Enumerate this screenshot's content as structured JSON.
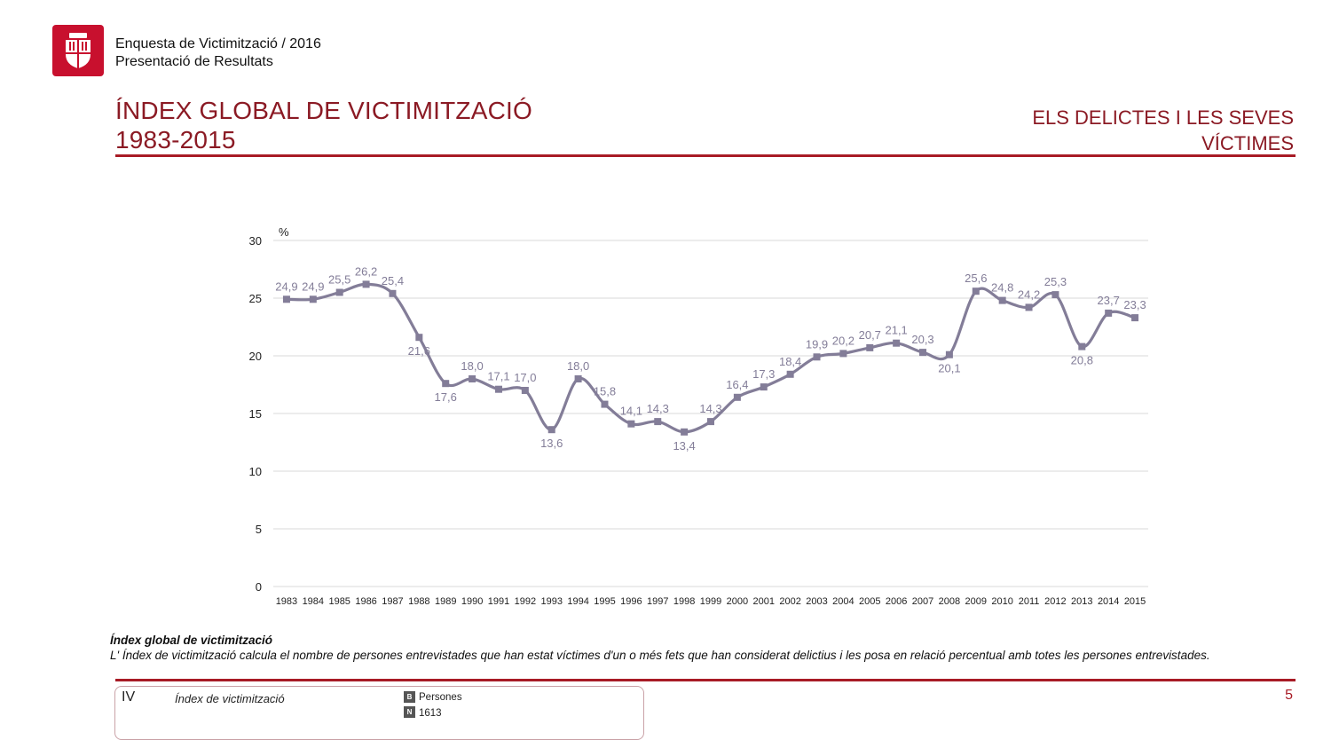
{
  "header": {
    "line1": "Enquesta de Victimització / 2016",
    "line2": "Presentació de Resultats"
  },
  "title": {
    "line1": "ÍNDEX GLOBAL DE VICTIMITZACIÓ",
    "line2": "1983-2015"
  },
  "section": {
    "line1": "ELS DELICTES I LES SEVES",
    "line2": "VÍCTIMES"
  },
  "colors": {
    "accent": "#a81b25",
    "title": "#8b1a24",
    "series": "#837d98",
    "logo": "#c8102e"
  },
  "chart_data": {
    "type": "line",
    "ylabel": "%",
    "ylim": [
      0,
      30
    ],
    "yticks": [
      0,
      5,
      10,
      15,
      20,
      25,
      30
    ],
    "grid": true,
    "legend": "none",
    "categories": [
      "1983",
      "1984",
      "1985",
      "1986",
      "1987",
      "1988",
      "1989",
      "1990",
      "1991",
      "1992",
      "1993",
      "1994",
      "1995",
      "1996",
      "1997",
      "1998",
      "1999",
      "2000",
      "2001",
      "2002",
      "2003",
      "2004",
      "2005",
      "2006",
      "2007",
      "2008",
      "2009",
      "2010",
      "2011",
      "2012",
      "2013",
      "2014",
      "2015"
    ],
    "values": [
      24.9,
      24.9,
      25.5,
      26.2,
      25.4,
      21.6,
      17.6,
      18.0,
      17.1,
      17.0,
      13.6,
      18.0,
      15.8,
      14.1,
      14.3,
      13.4,
      14.3,
      16.4,
      17.3,
      18.4,
      19.9,
      20.2,
      20.7,
      21.1,
      20.3,
      20.1,
      25.6,
      24.8,
      24.2,
      25.3,
      20.8,
      23.7,
      23.3
    ],
    "labels": [
      "24,9",
      "24,9",
      "25,5",
      "26,2",
      "25,4",
      "21,6",
      "17,6",
      "18,0",
      "17,1",
      "17,0",
      "13,6",
      "18,0",
      "15,8",
      "14,1",
      "14,3",
      "13,4",
      "14,3",
      "16,4",
      "17,3",
      "18,4",
      "19,9",
      "20,2",
      "20,7",
      "21,1",
      "20,3",
      "20,1",
      "25,6",
      "24,8",
      "24,2",
      "25,3",
      "20,8",
      "23,7",
      "23,3"
    ],
    "label_below": [
      5,
      6,
      10,
      15,
      25,
      30
    ]
  },
  "notes": {
    "title": "Índex global de victimització",
    "text": "L' Índex de victimització calcula el nombre de persones entrevistades que han estat víctimes d'un o més fets que han considerat delictius i les posa en relació percentual amb totes les persones entrevistades."
  },
  "technical": {
    "code": "IV",
    "label": "Índex de victimització",
    "base_tag": "B",
    "base_value": "Persones",
    "n_tag": "N",
    "n_value": "1613"
  },
  "page_number": "5"
}
